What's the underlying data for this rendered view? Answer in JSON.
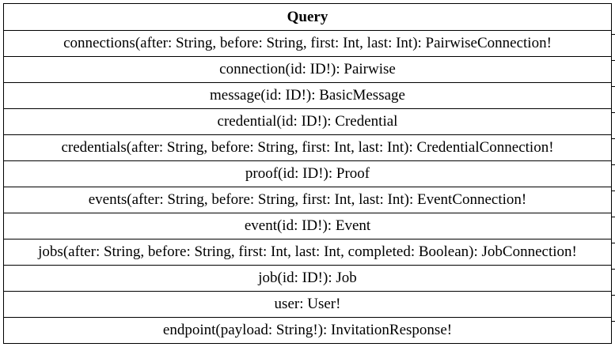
{
  "entity": {
    "title": "Query",
    "fields": [
      "connections(after: String, before: String, first: Int, last: Int): PairwiseConnection!",
      "connection(id: ID!): Pairwise",
      "message(id: ID!): BasicMessage",
      "credential(id: ID!): Credential",
      "credentials(after: String, before: String, first: Int, last: Int): CredentialConnection!",
      "proof(id: ID!): Proof",
      "events(after: String, before: String, first: Int, last: Int): EventConnection!",
      "event(id: ID!): Event",
      "jobs(after: String, before: String, first: Int, last: Int, completed: Boolean): JobConnection!",
      "job(id: ID!): Job",
      "user: User!",
      "endpoint(payload: String!): InvitationResponse!"
    ]
  }
}
